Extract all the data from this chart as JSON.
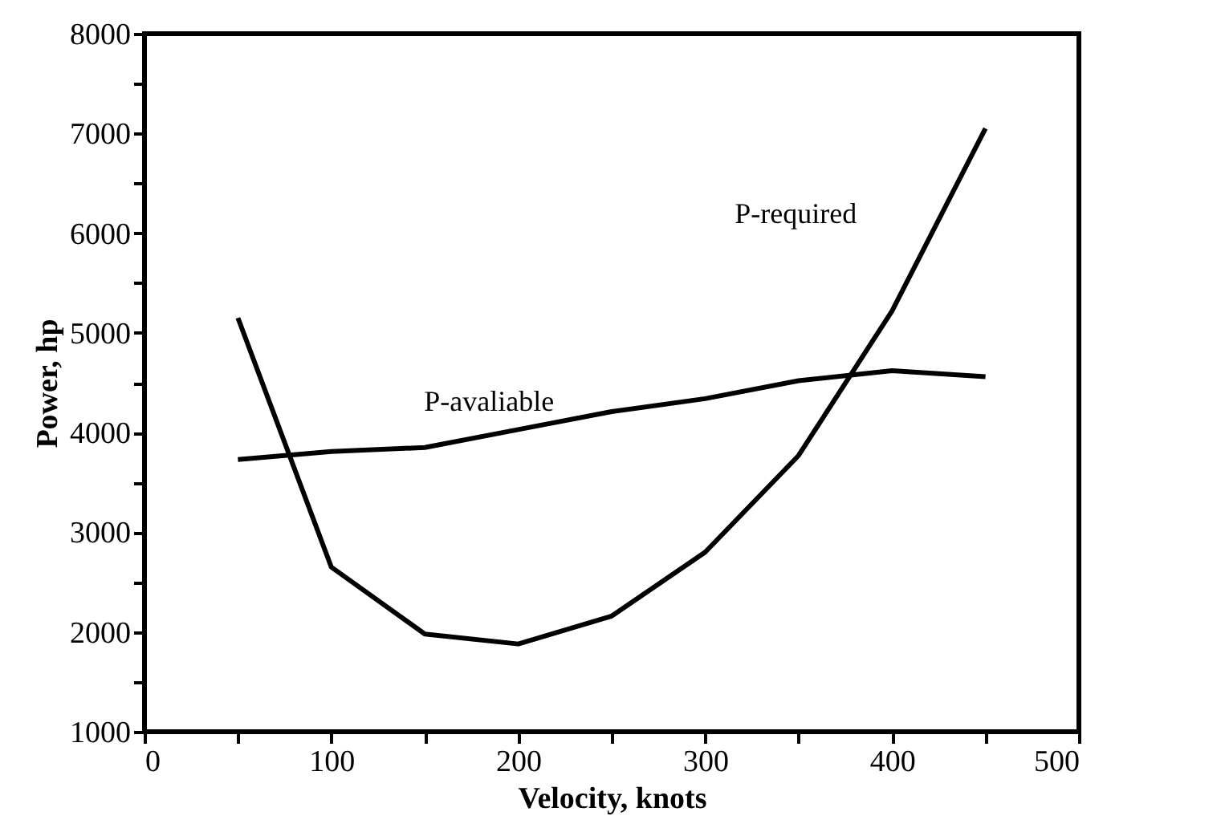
{
  "chart_data": {
    "type": "line",
    "xlabel": "Velocity,  knots",
    "ylabel": "Power,  hp",
    "x": [
      50,
      100,
      150,
      200,
      250,
      300,
      350,
      400,
      450
    ],
    "series": [
      {
        "name": "P-required",
        "color": "#000000",
        "values": [
          5150,
          2650,
          1980,
          1880,
          2160,
          2800,
          3770,
          5220,
          7050
        ]
      },
      {
        "name": "P-avaliable",
        "color": "#000000",
        "values": [
          3730,
          3810,
          3850,
          4030,
          4210,
          4340,
          4520,
          4620,
          4560
        ]
      }
    ],
    "xlim": [
      0,
      500
    ],
    "ylim": [
      1000,
      8000
    ],
    "xticks": [
      0,
      {
        "value": 50,
        "label": null
      },
      100,
      {
        "value": 150,
        "label": null
      },
      200,
      {
        "value": 250,
        "label": null
      },
      300,
      {
        "value": 350,
        "label": null
      },
      400,
      {
        "value": 450,
        "label": null
      },
      500
    ],
    "yticks": [
      1000,
      {
        "value": 1500,
        "label": null
      },
      2000,
      {
        "value": 2500,
        "label": null
      },
      3000,
      {
        "value": 3500,
        "label": null
      },
      4000,
      {
        "value": 4500,
        "label": null
      },
      5000,
      {
        "value": 5500,
        "label": null
      },
      6000,
      {
        "value": 6500,
        "label": null
      },
      7000,
      {
        "value": 7500,
        "label": null
      },
      8000
    ],
    "grid": false,
    "legend": false,
    "marker": "none",
    "line_style": "solid"
  }
}
